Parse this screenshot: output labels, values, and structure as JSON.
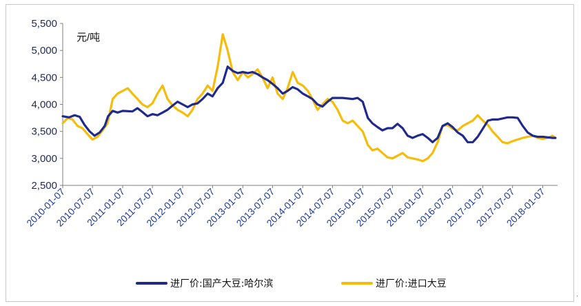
{
  "chart_data": {
    "type": "line",
    "unit_label": "元/吨",
    "ylim": [
      2500,
      5500
    ],
    "y_ticks": [
      "5,500",
      "5,000",
      "4,500",
      "4,000",
      "3,500",
      "3,000",
      "2,500"
    ],
    "y_tick_values": [
      5500,
      5000,
      4500,
      4000,
      3500,
      3000,
      2500
    ],
    "x_ticks": [
      "2010-01-07",
      "2010-07-07",
      "2011-01-07",
      "2011-07-07",
      "2012-01-07",
      "2012-07-07",
      "2013-01-07",
      "2013-07-07",
      "2014-01-07",
      "2014-07-07",
      "2015-01-07",
      "2015-07-07",
      "2016-01-07",
      "2016-07-07",
      "2017-01-07",
      "2017-07-07",
      "2018-01-07"
    ],
    "xlim": [
      "2010-01-07",
      "2018-04-07"
    ],
    "grid": false,
    "legend_position": "bottom",
    "series": [
      {
        "name": "进厂价:国产大豆:哈尔滨",
        "color": "#1f2a8c",
        "points": [
          [
            "2010-01-07",
            3780
          ],
          [
            "2010-02-15",
            3760
          ],
          [
            "2010-03-20",
            3800
          ],
          [
            "2010-04-20",
            3770
          ],
          [
            "2010-05-20",
            3620
          ],
          [
            "2010-06-20",
            3500
          ],
          [
            "2010-07-20",
            3420
          ],
          [
            "2010-08-20",
            3480
          ],
          [
            "2010-09-20",
            3600
          ],
          [
            "2010-10-10",
            3780
          ],
          [
            "2010-11-07",
            3880
          ],
          [
            "2010-12-07",
            3850
          ],
          [
            "2011-01-07",
            3880
          ],
          [
            "2011-03-07",
            3870
          ],
          [
            "2011-04-07",
            3930
          ],
          [
            "2011-05-07",
            3860
          ],
          [
            "2011-06-07",
            3780
          ],
          [
            "2011-07-07",
            3820
          ],
          [
            "2011-08-07",
            3800
          ],
          [
            "2011-09-07",
            3850
          ],
          [
            "2011-10-07",
            3900
          ],
          [
            "2011-11-07",
            3980
          ],
          [
            "2011-12-07",
            4050
          ],
          [
            "2012-01-07",
            4000
          ],
          [
            "2012-02-07",
            3950
          ],
          [
            "2012-03-07",
            4000
          ],
          [
            "2012-04-07",
            4020
          ],
          [
            "2012-05-07",
            4100
          ],
          [
            "2012-06-07",
            4200
          ],
          [
            "2012-07-07",
            4150
          ],
          [
            "2012-08-07",
            4300
          ],
          [
            "2012-09-07",
            4400
          ],
          [
            "2012-10-07",
            4700
          ],
          [
            "2012-11-07",
            4620
          ],
          [
            "2012-12-07",
            4580
          ],
          [
            "2013-01-07",
            4600
          ],
          [
            "2013-02-07",
            4580
          ],
          [
            "2013-03-07",
            4600
          ],
          [
            "2013-04-07",
            4560
          ],
          [
            "2013-05-07",
            4500
          ],
          [
            "2013-06-07",
            4450
          ],
          [
            "2013-07-07",
            4380
          ],
          [
            "2013-08-07",
            4300
          ],
          [
            "2013-09-07",
            4200
          ],
          [
            "2013-10-07",
            4250
          ],
          [
            "2013-11-07",
            4320
          ],
          [
            "2013-12-07",
            4280
          ],
          [
            "2014-01-07",
            4200
          ],
          [
            "2014-02-07",
            4150
          ],
          [
            "2014-03-07",
            4100
          ],
          [
            "2014-04-07",
            4000
          ],
          [
            "2014-05-07",
            3960
          ],
          [
            "2014-06-07",
            4050
          ],
          [
            "2014-07-07",
            4120
          ],
          [
            "2014-09-07",
            4120
          ],
          [
            "2014-11-07",
            4100
          ],
          [
            "2014-12-07",
            4120
          ],
          [
            "2015-01-07",
            4050
          ],
          [
            "2015-02-07",
            3750
          ],
          [
            "2015-03-07",
            3650
          ],
          [
            "2015-04-07",
            3580
          ],
          [
            "2015-05-07",
            3520
          ],
          [
            "2015-06-07",
            3560
          ],
          [
            "2015-07-07",
            3560
          ],
          [
            "2015-08-07",
            3640
          ],
          [
            "2015-09-07",
            3560
          ],
          [
            "2015-10-07",
            3420
          ],
          [
            "2015-11-07",
            3380
          ],
          [
            "2015-12-07",
            3420
          ],
          [
            "2016-01-07",
            3450
          ],
          [
            "2016-02-07",
            3380
          ],
          [
            "2016-03-07",
            3300
          ],
          [
            "2016-04-07",
            3380
          ],
          [
            "2016-05-07",
            3600
          ],
          [
            "2016-06-07",
            3650
          ],
          [
            "2016-07-07",
            3580
          ],
          [
            "2016-08-07",
            3480
          ],
          [
            "2016-09-07",
            3420
          ],
          [
            "2016-10-07",
            3300
          ],
          [
            "2016-11-07",
            3300
          ],
          [
            "2016-12-07",
            3400
          ],
          [
            "2017-01-07",
            3550
          ],
          [
            "2017-02-07",
            3700
          ],
          [
            "2017-03-07",
            3720
          ],
          [
            "2017-04-07",
            3720
          ],
          [
            "2017-05-07",
            3740
          ],
          [
            "2017-06-07",
            3760
          ],
          [
            "2017-07-07",
            3760
          ],
          [
            "2017-08-07",
            3750
          ],
          [
            "2017-09-07",
            3600
          ],
          [
            "2017-10-07",
            3480
          ],
          [
            "2017-11-07",
            3420
          ],
          [
            "2017-12-07",
            3400
          ],
          [
            "2018-01-07",
            3400
          ],
          [
            "2018-02-07",
            3390
          ],
          [
            "2018-03-07",
            3380
          ],
          [
            "2018-03-25",
            3380
          ]
        ]
      },
      {
        "name": "进厂价:进口大豆",
        "color": "#f5bd0a",
        "points": [
          [
            "2010-01-07",
            3650
          ],
          [
            "2010-02-07",
            3750
          ],
          [
            "2010-03-07",
            3720
          ],
          [
            "2010-04-07",
            3600
          ],
          [
            "2010-05-07",
            3560
          ],
          [
            "2010-06-07",
            3450
          ],
          [
            "2010-07-07",
            3350
          ],
          [
            "2010-08-07",
            3400
          ],
          [
            "2010-09-07",
            3520
          ],
          [
            "2010-10-07",
            3650
          ],
          [
            "2010-11-07",
            4100
          ],
          [
            "2010-12-07",
            4200
          ],
          [
            "2011-01-07",
            4250
          ],
          [
            "2011-02-07",
            4300
          ],
          [
            "2011-03-07",
            4200
          ],
          [
            "2011-04-07",
            4100
          ],
          [
            "2011-05-07",
            4000
          ],
          [
            "2011-06-07",
            3950
          ],
          [
            "2011-07-07",
            4020
          ],
          [
            "2011-08-07",
            4200
          ],
          [
            "2011-09-07",
            4350
          ],
          [
            "2011-10-07",
            4100
          ],
          [
            "2011-11-07",
            3980
          ],
          [
            "2011-12-07",
            3900
          ],
          [
            "2012-01-07",
            3850
          ],
          [
            "2012-02-07",
            3780
          ],
          [
            "2012-03-07",
            3900
          ],
          [
            "2012-04-07",
            4100
          ],
          [
            "2012-05-07",
            4200
          ],
          [
            "2012-06-07",
            4350
          ],
          [
            "2012-07-07",
            4250
          ],
          [
            "2012-08-07",
            4700
          ],
          [
            "2012-09-07",
            5300
          ],
          [
            "2012-10-07",
            5000
          ],
          [
            "2012-11-07",
            4600
          ],
          [
            "2012-12-07",
            4450
          ],
          [
            "2013-01-07",
            4600
          ],
          [
            "2013-02-07",
            4500
          ],
          [
            "2013-03-07",
            4560
          ],
          [
            "2013-04-07",
            4650
          ],
          [
            "2013-05-07",
            4500
          ],
          [
            "2013-06-07",
            4300
          ],
          [
            "2013-07-07",
            4500
          ],
          [
            "2013-08-07",
            4200
          ],
          [
            "2013-09-07",
            4100
          ],
          [
            "2013-10-07",
            4300
          ],
          [
            "2013-11-07",
            4600
          ],
          [
            "2013-12-07",
            4400
          ],
          [
            "2014-01-07",
            4350
          ],
          [
            "2014-02-07",
            4250
          ],
          [
            "2014-03-07",
            4100
          ],
          [
            "2014-04-07",
            3900
          ],
          [
            "2014-05-07",
            4000
          ],
          [
            "2014-06-07",
            4100
          ],
          [
            "2014-07-07",
            4050
          ],
          [
            "2014-08-07",
            3900
          ],
          [
            "2014-09-07",
            3700
          ],
          [
            "2014-10-07",
            3650
          ],
          [
            "2014-11-07",
            3700
          ],
          [
            "2014-12-07",
            3600
          ],
          [
            "2015-01-07",
            3500
          ],
          [
            "2015-02-07",
            3250
          ],
          [
            "2015-03-07",
            3150
          ],
          [
            "2015-04-07",
            3180
          ],
          [
            "2015-05-07",
            3100
          ],
          [
            "2015-06-07",
            3020
          ],
          [
            "2015-07-07",
            3000
          ],
          [
            "2015-08-07",
            3050
          ],
          [
            "2015-09-07",
            3100
          ],
          [
            "2015-10-07",
            3020
          ],
          [
            "2015-11-07",
            3000
          ],
          [
            "2015-12-07",
            2980
          ],
          [
            "2016-01-07",
            2950
          ],
          [
            "2016-02-07",
            3000
          ],
          [
            "2016-03-07",
            3100
          ],
          [
            "2016-04-07",
            3300
          ],
          [
            "2016-05-07",
            3600
          ],
          [
            "2016-06-07",
            3620
          ],
          [
            "2016-07-07",
            3550
          ],
          [
            "2016-08-07",
            3520
          ],
          [
            "2016-09-07",
            3600
          ],
          [
            "2016-10-07",
            3650
          ],
          [
            "2016-11-07",
            3700
          ],
          [
            "2016-12-07",
            3800
          ],
          [
            "2017-01-07",
            3700
          ],
          [
            "2017-02-07",
            3620
          ],
          [
            "2017-03-07",
            3500
          ],
          [
            "2017-04-07",
            3400
          ],
          [
            "2017-05-07",
            3300
          ],
          [
            "2017-06-07",
            3280
          ],
          [
            "2017-07-07",
            3320
          ],
          [
            "2017-08-07",
            3350
          ],
          [
            "2017-09-07",
            3380
          ],
          [
            "2017-10-07",
            3400
          ],
          [
            "2017-11-07",
            3420
          ],
          [
            "2017-12-07",
            3380
          ],
          [
            "2018-01-07",
            3360
          ],
          [
            "2018-02-07",
            3380
          ],
          [
            "2018-03-07",
            3420
          ],
          [
            "2018-03-25",
            3380
          ]
        ]
      }
    ]
  },
  "corner_mark": "·"
}
